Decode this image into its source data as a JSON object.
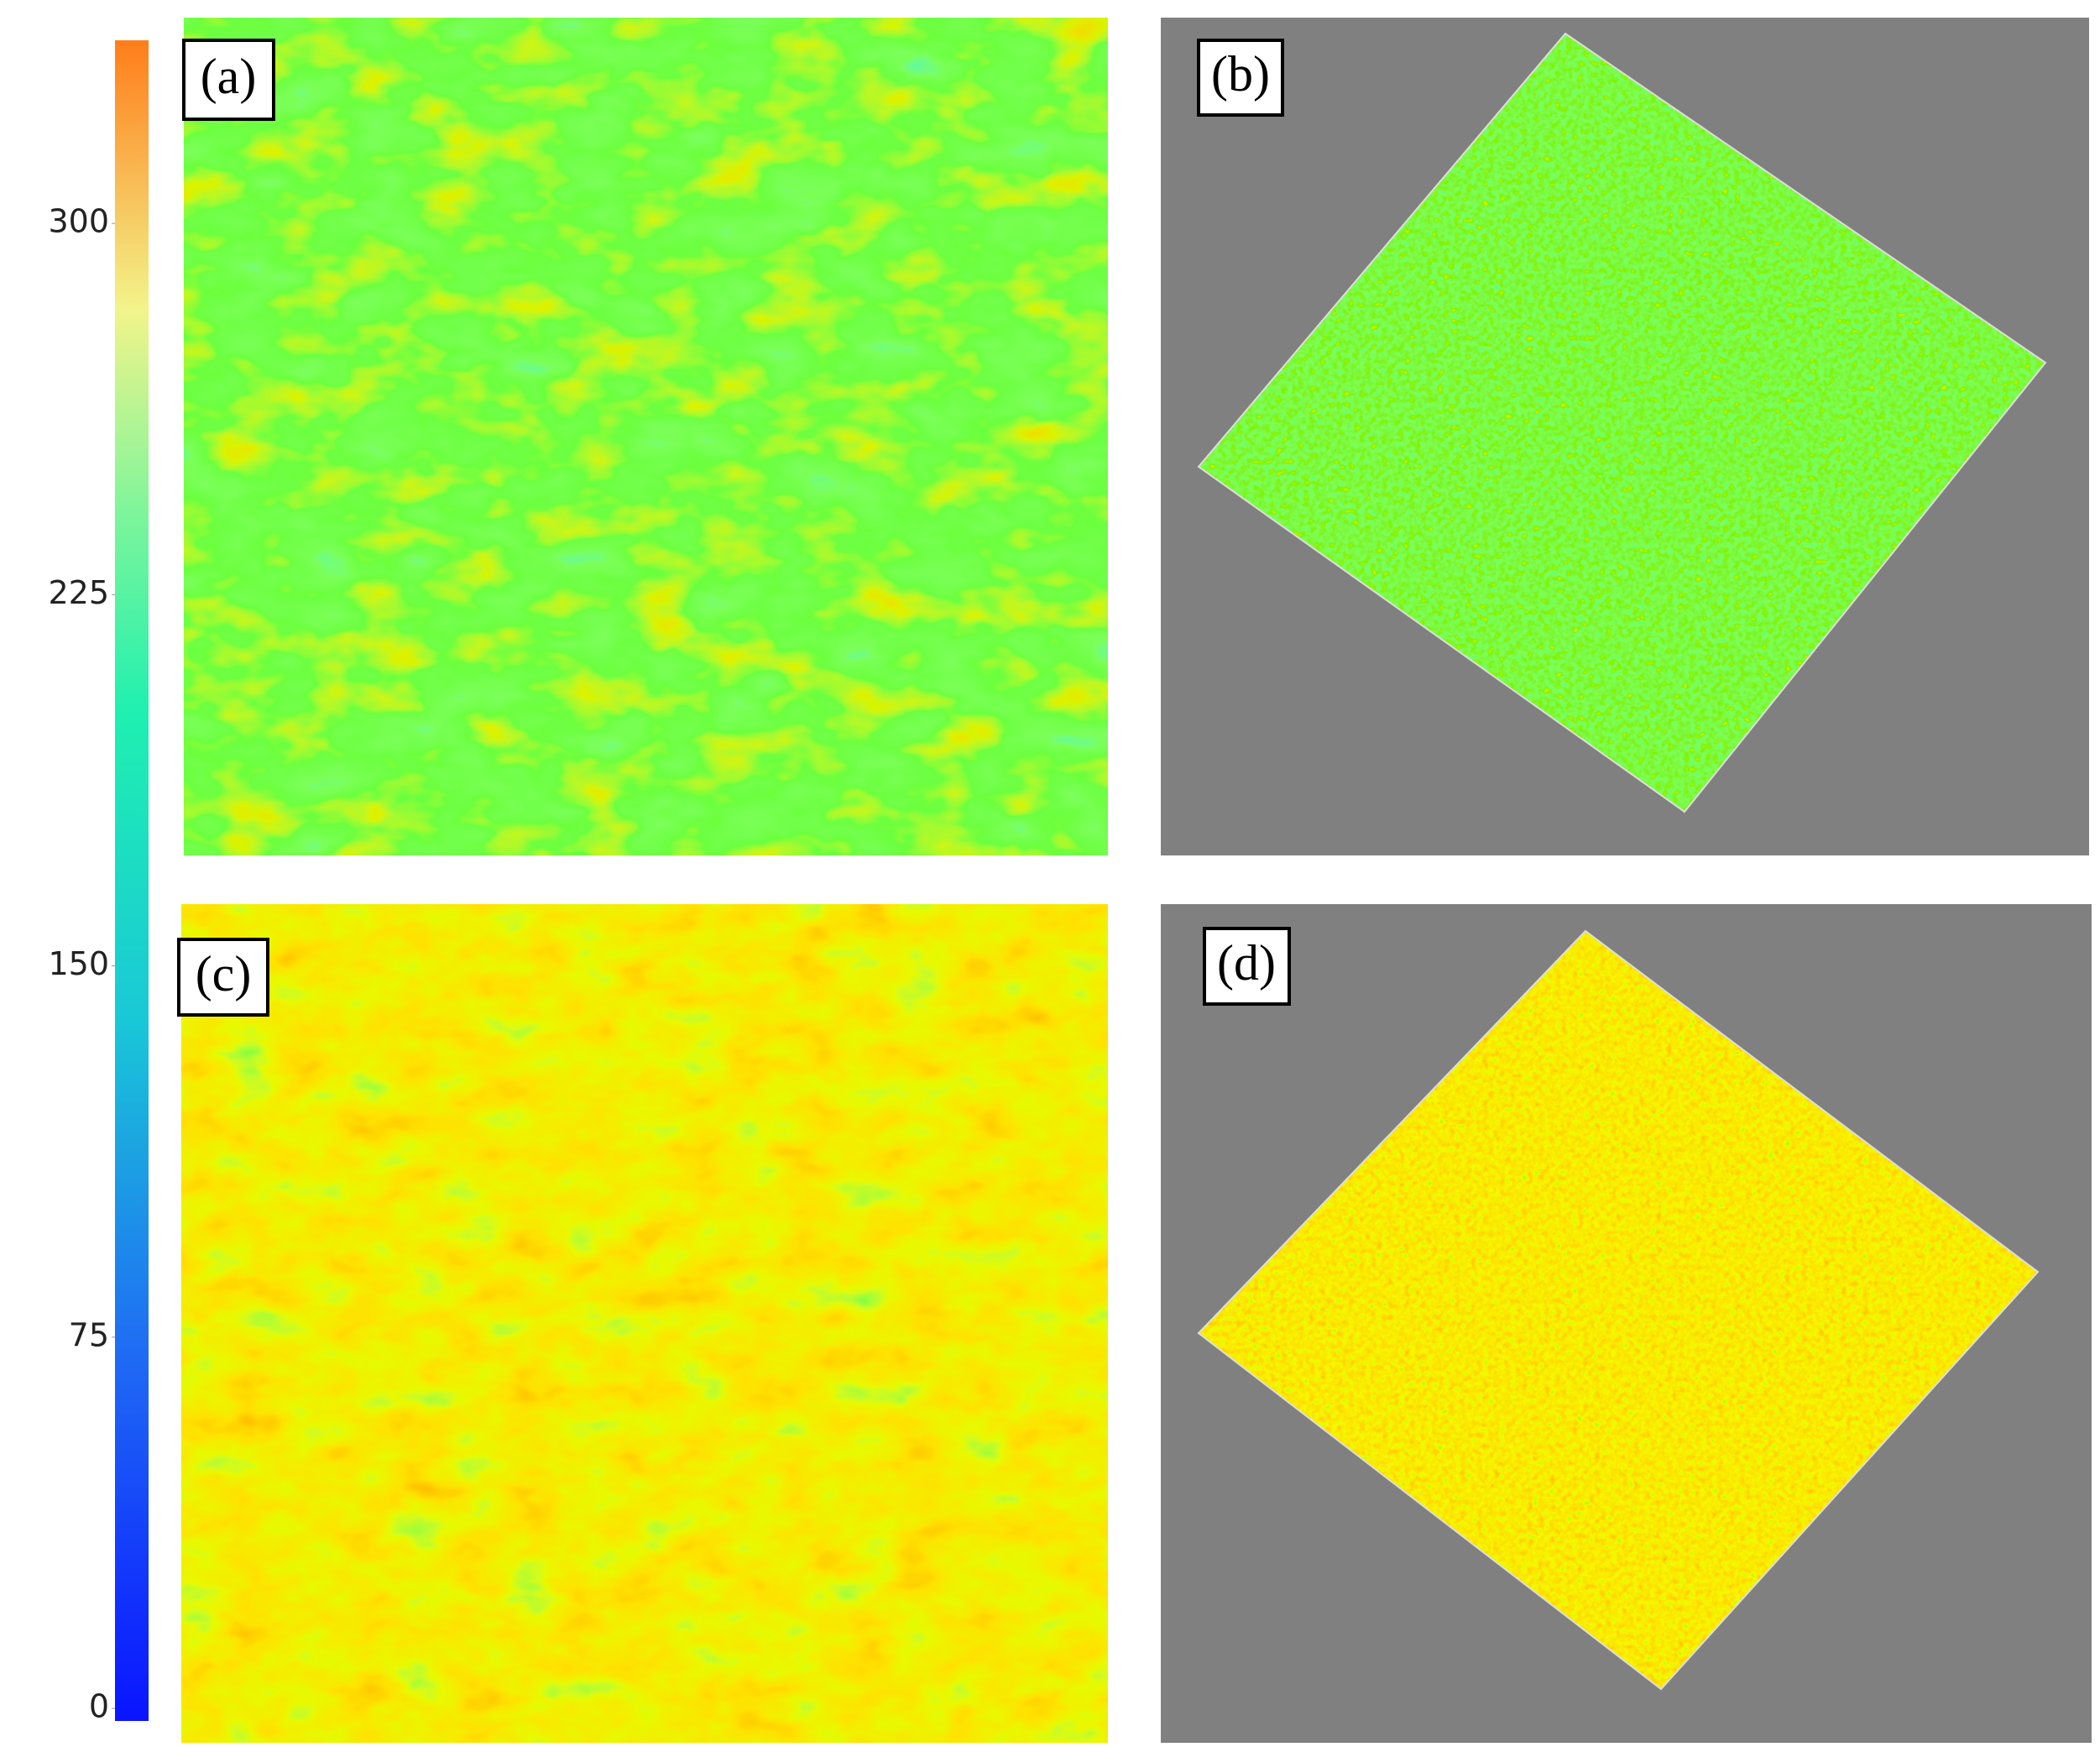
{
  "chart_data": {
    "type": "colorbar",
    "ylim": [
      0,
      337
    ],
    "yticks": [
      0,
      75,
      150,
      225,
      300
    ]
  },
  "panels": [
    {
      "label": "(a)"
    },
    {
      "label": "(b)"
    },
    {
      "label": "(c)"
    },
    {
      "label": "(d)"
    }
  ]
}
